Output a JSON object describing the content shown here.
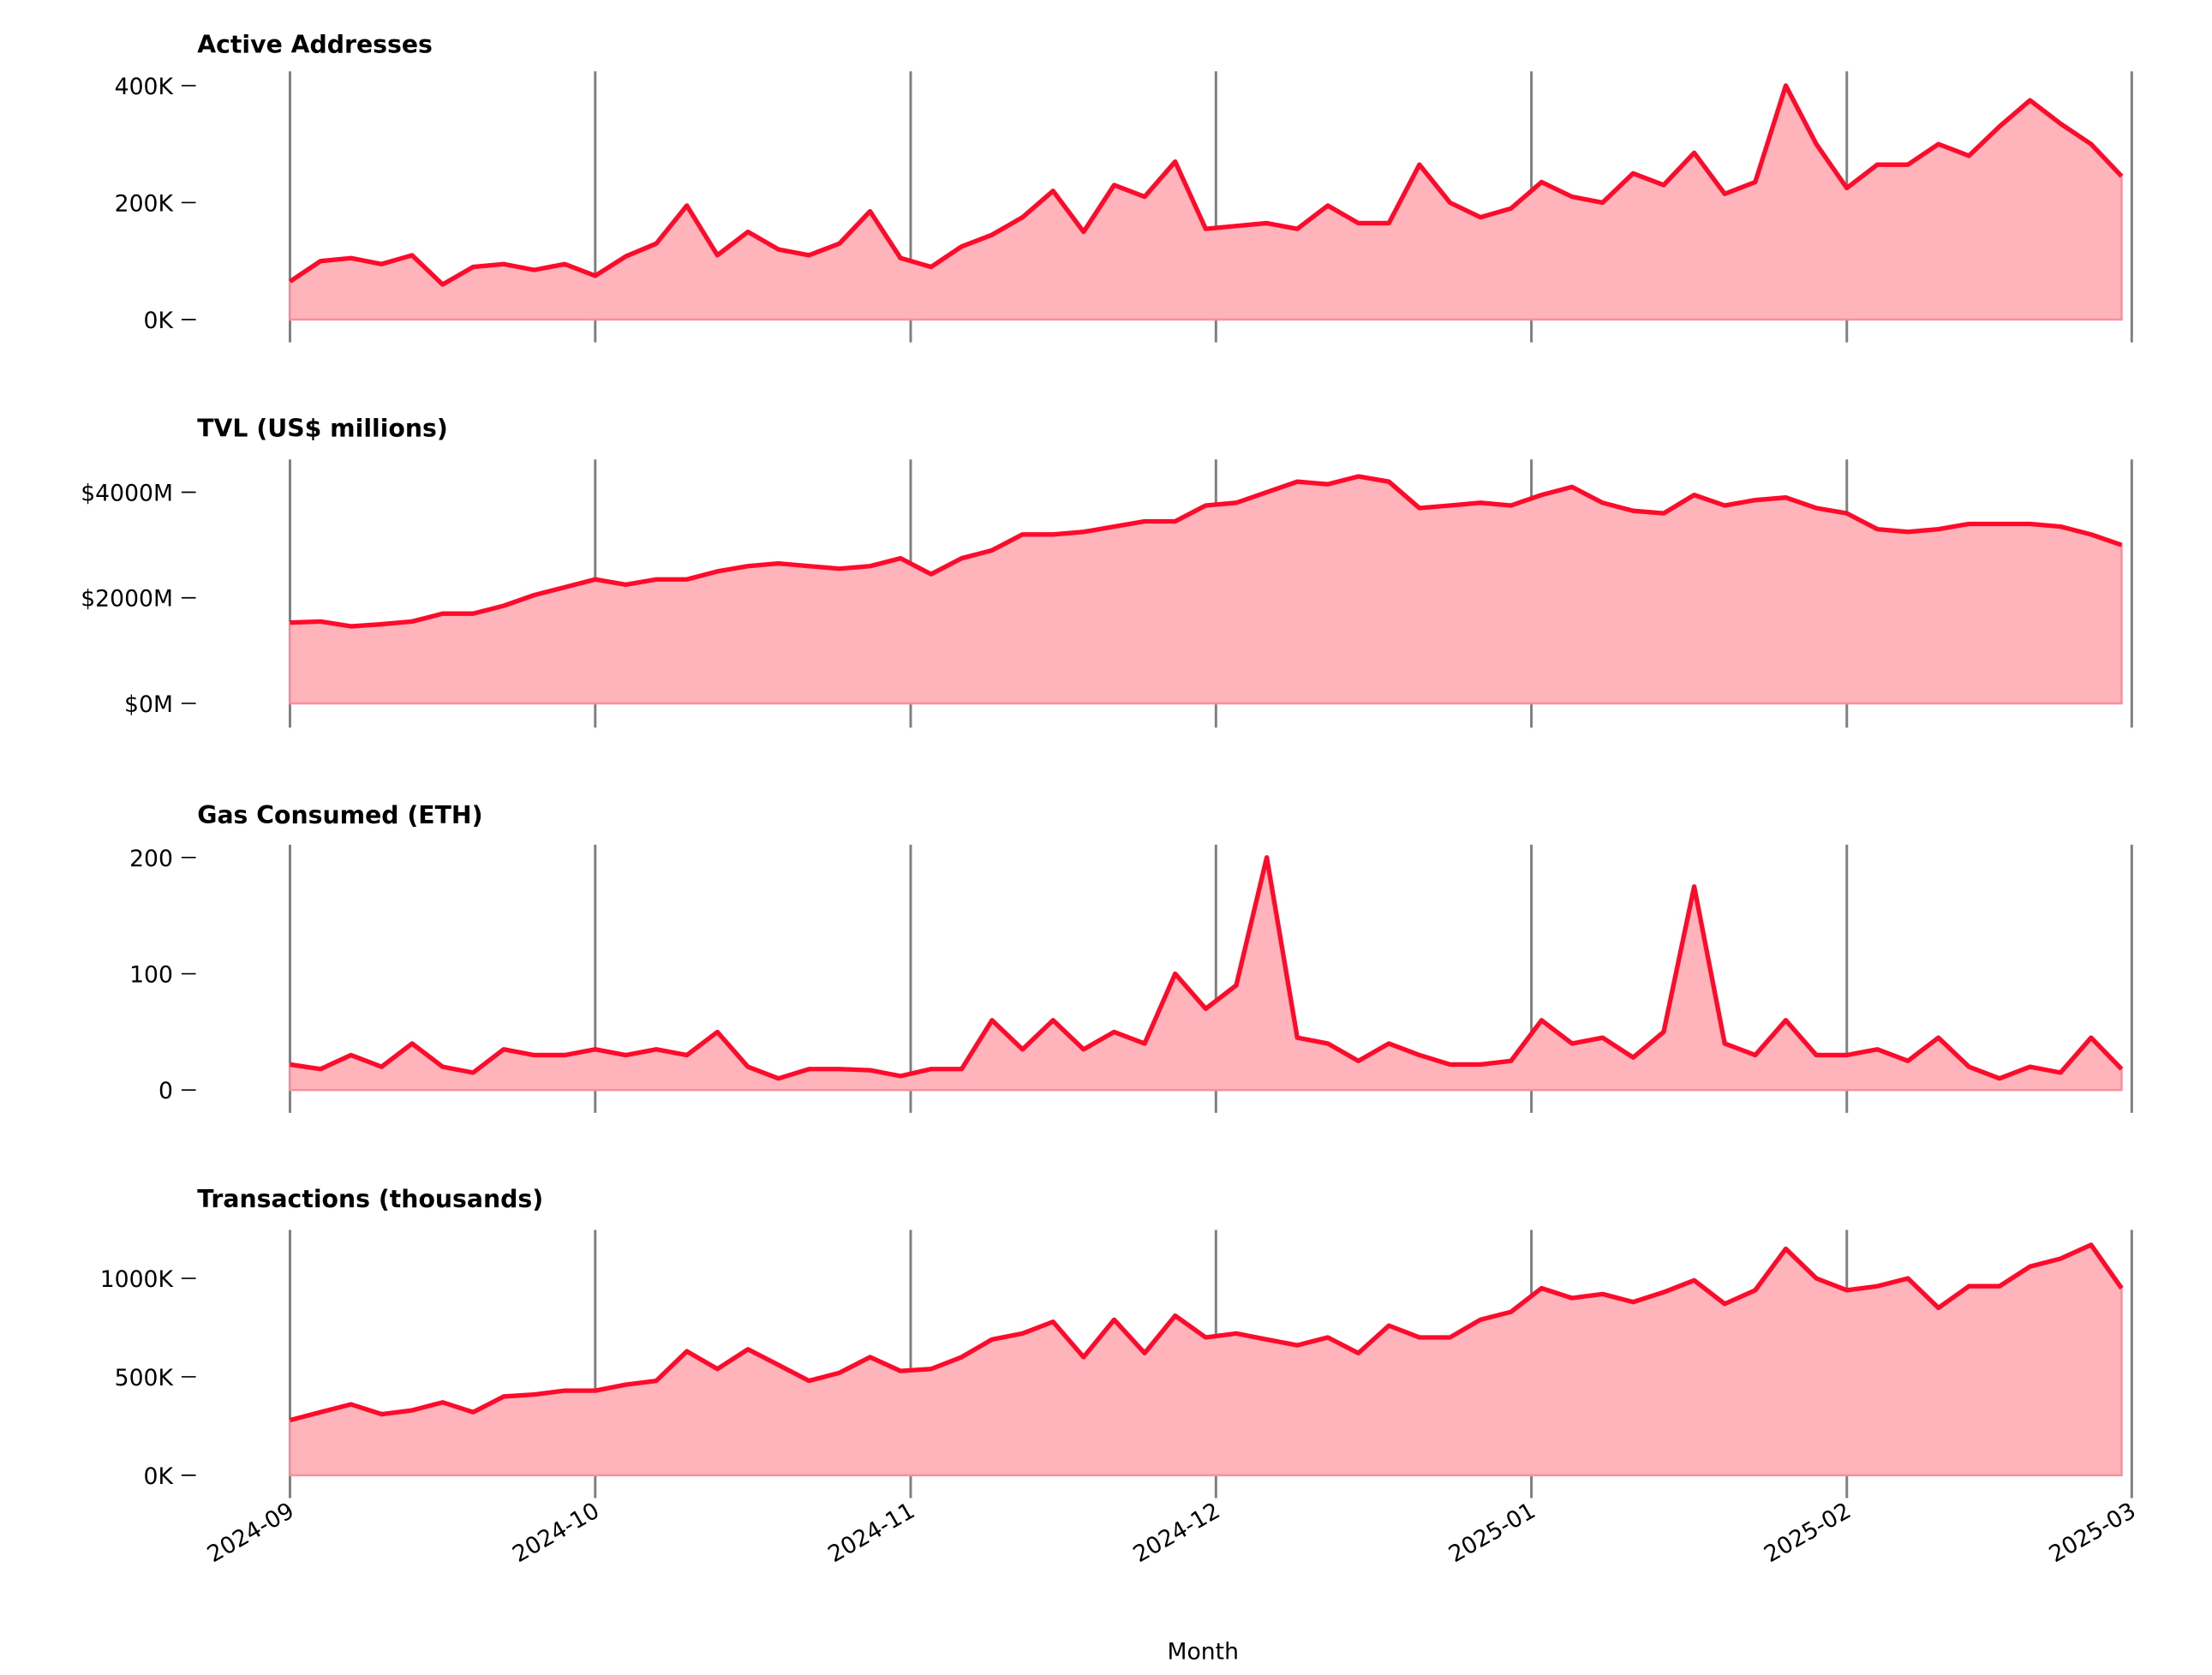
{
  "chart_data": {
    "type": "area",
    "xlabel": "Month",
    "x_ticks": [
      "2024-09",
      "2024-10",
      "2024-11",
      "2024-12",
      "2025-01",
      "2025-02",
      "2025-03"
    ],
    "xlim": [
      "2024-09-01",
      "2025-03-01"
    ],
    "grid": "vertical at month ticks",
    "colors": {
      "line": "#ff0a2a",
      "fill": "#ffb3ba",
      "grid": "#808080"
    },
    "x": [
      "2024-09-01",
      "2024-09-04",
      "2024-09-07",
      "2024-09-10",
      "2024-09-13",
      "2024-09-16",
      "2024-09-19",
      "2024-09-22",
      "2024-09-25",
      "2024-09-28",
      "2024-10-01",
      "2024-10-04",
      "2024-10-07",
      "2024-10-10",
      "2024-10-13",
      "2024-10-16",
      "2024-10-19",
      "2024-10-22",
      "2024-10-25",
      "2024-10-28",
      "2024-10-31",
      "2024-11-03",
      "2024-11-06",
      "2024-11-09",
      "2024-11-12",
      "2024-11-15",
      "2024-11-18",
      "2024-11-21",
      "2024-11-24",
      "2024-11-27",
      "2024-11-30",
      "2024-12-03",
      "2024-12-06",
      "2024-12-09",
      "2024-12-12",
      "2024-12-15",
      "2024-12-18",
      "2024-12-21",
      "2024-12-24",
      "2024-12-27",
      "2024-12-30",
      "2025-01-02",
      "2025-01-05",
      "2025-01-08",
      "2025-01-11",
      "2025-01-14",
      "2025-01-17",
      "2025-01-20",
      "2025-01-23",
      "2025-01-26",
      "2025-01-29",
      "2025-02-01",
      "2025-02-04",
      "2025-02-07",
      "2025-02-10",
      "2025-02-13",
      "2025-02-16",
      "2025-02-19",
      "2025-02-22",
      "2025-02-25",
      "2025-02-28"
    ],
    "panels": [
      {
        "title": "Active Addresses",
        "unit": "thousands",
        "ylim": [
          0,
          400
        ],
        "y_ticks": [
          {
            "value": 0,
            "label": "0K"
          },
          {
            "value": 200,
            "label": "200K"
          },
          {
            "value": 400,
            "label": "400K"
          }
        ],
        "values": [
          65,
          100,
          105,
          95,
          110,
          60,
          90,
          95,
          85,
          95,
          75,
          108,
          130,
          195,
          110,
          150,
          120,
          110,
          130,
          185,
          105,
          90,
          125,
          145,
          175,
          220,
          150,
          230,
          210,
          270,
          155,
          160,
          165,
          155,
          195,
          165,
          165,
          265,
          200,
          175,
          190,
          235,
          210,
          200,
          250,
          230,
          285,
          215,
          235,
          400,
          300,
          225,
          265,
          265,
          300,
          280,
          330,
          375,
          335,
          300,
          245
        ]
      },
      {
        "title": "TVL (US$ millions)",
        "unit": "US$ millions",
        "ylim": [
          0,
          4600
        ],
        "y_ticks": [
          {
            "value": 0,
            "label": "$0M"
          },
          {
            "value": 2000,
            "label": "$2000M"
          },
          {
            "value": 4000,
            "label": "$4000M"
          }
        ],
        "values": [
          1530,
          1550,
          1460,
          1500,
          1550,
          1700,
          1700,
          1850,
          2050,
          2200,
          2350,
          2250,
          2350,
          2350,
          2500,
          2600,
          2650,
          2600,
          2550,
          2600,
          2750,
          2450,
          2750,
          2900,
          3200,
          3200,
          3250,
          3350,
          3450,
          3450,
          3750,
          3800,
          4000,
          4200,
          4150,
          4300,
          4200,
          3700,
          3750,
          3800,
          3750,
          3950,
          4100,
          3800,
          3650,
          3600,
          3950,
          3750,
          3850,
          3900,
          3700,
          3600,
          3300,
          3250,
          3300,
          3400,
          3400,
          3400,
          3350,
          3200,
          3000
        ]
      },
      {
        "title": "Gas Consumed (ETH)",
        "unit": "ETH",
        "ylim": [
          0,
          210
        ],
        "y_ticks": [
          {
            "value": 0,
            "label": "0"
          },
          {
            "value": 100,
            "label": "100"
          },
          {
            "value": 200,
            "label": "200"
          }
        ],
        "values": [
          22,
          18,
          30,
          20,
          40,
          20,
          15,
          35,
          30,
          30,
          35,
          30,
          35,
          30,
          50,
          20,
          10,
          18,
          18,
          17,
          12,
          18,
          18,
          60,
          35,
          60,
          35,
          50,
          40,
          100,
          70,
          90,
          200,
          45,
          40,
          25,
          40,
          30,
          22,
          22,
          25,
          60,
          40,
          45,
          28,
          50,
          175,
          40,
          30,
          60,
          30,
          30,
          35,
          25,
          45,
          20,
          10,
          20,
          15,
          45,
          18
        ]
      },
      {
        "title": "Transactions (thousands)",
        "unit": "thousands",
        "ylim": [
          0,
          1250
        ],
        "y_ticks": [
          {
            "value": 0,
            "label": "0K"
          },
          {
            "value": 500,
            "label": "500K"
          },
          {
            "value": 1000,
            "label": "1000K"
          }
        ],
        "values": [
          280,
          320,
          360,
          310,
          330,
          370,
          320,
          400,
          410,
          430,
          430,
          460,
          480,
          630,
          540,
          640,
          560,
          480,
          520,
          600,
          530,
          540,
          600,
          690,
          720,
          780,
          600,
          790,
          620,
          810,
          700,
          720,
          690,
          660,
          700,
          620,
          760,
          700,
          700,
          790,
          830,
          950,
          900,
          920,
          880,
          930,
          990,
          870,
          940,
          1150,
          1000,
          940,
          960,
          1000,
          850,
          960,
          960,
          1060,
          1100,
          1170,
          950
        ]
      }
    ]
  }
}
